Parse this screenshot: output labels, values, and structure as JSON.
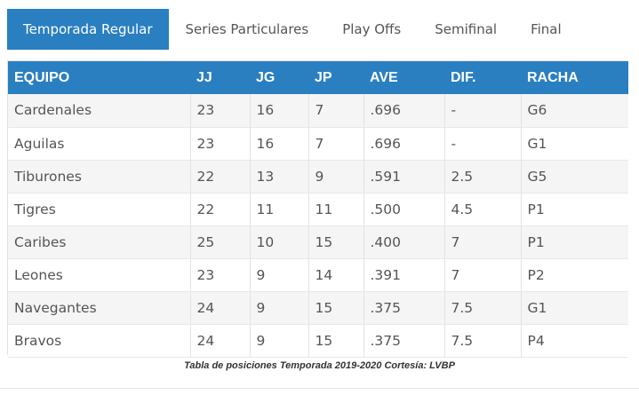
{
  "tabs": [
    {
      "label": "Temporada Regular",
      "active": true
    },
    {
      "label": "Series Particulares",
      "active": false
    },
    {
      "label": "Play Offs",
      "active": false
    },
    {
      "label": "Semifinal",
      "active": false
    },
    {
      "label": "Final",
      "active": false
    }
  ],
  "table": {
    "headers": [
      "EQUIPO",
      "JJ",
      "JG",
      "JP",
      "AVE",
      "DIF.",
      "RACHA"
    ],
    "rows": [
      [
        "Cardenales",
        "23",
        "16",
        "7",
        ".696",
        "-",
        "G6"
      ],
      [
        "Aguilas",
        "23",
        "16",
        "7",
        ".696",
        "-",
        "G1"
      ],
      [
        "Tiburones",
        "22",
        "13",
        "9",
        ".591",
        "2.5",
        "G5"
      ],
      [
        "Tigres",
        "22",
        "11",
        "11",
        ".500",
        "4.5",
        "P1"
      ],
      [
        "Caribes",
        "25",
        "10",
        "15",
        ".400",
        "7",
        "P1"
      ],
      [
        "Leones",
        "23",
        "9",
        "14",
        ".391",
        "7",
        "P2"
      ],
      [
        "Navegantes",
        "24",
        "9",
        "15",
        ".375",
        "7.5",
        "G1"
      ],
      [
        "Bravos",
        "24",
        "9",
        "15",
        ".375",
        "7.5",
        "P4"
      ]
    ]
  },
  "caption": "Tabla de posiciones Temporada 2019-2020 Cortesía: LVBP",
  "colors": {
    "accent": "#2a7fc1",
    "row_alt": "#f5f5f5"
  }
}
